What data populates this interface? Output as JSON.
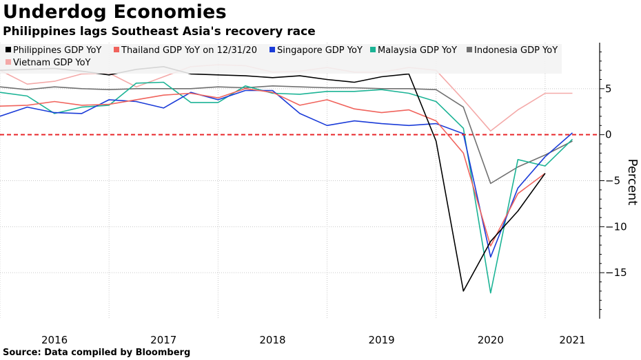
{
  "header": {
    "title": "Underdog Economies",
    "subtitle": "Philippines lags Southeast Asia's recovery race"
  },
  "footer": {
    "source": "Source: Data compiled by Bloomberg"
  },
  "chart_data": {
    "type": "line",
    "ylabel": "Percent",
    "ylim": [
      -20,
      10
    ],
    "yticks": [
      5,
      0,
      -5,
      -10,
      -15
    ],
    "x_ticks": [
      {
        "label": "2016",
        "x": 2016.5
      },
      {
        "label": "2017",
        "x": 2017.5
      },
      {
        "label": "2018",
        "x": 2018.5
      },
      {
        "label": "2019",
        "x": 2019.5
      },
      {
        "label": "2020",
        "x": 2020.5
      },
      {
        "label": "2021",
        "x": 2021.25
      }
    ],
    "x_gridlines": [
      2016,
      2017,
      2018,
      2019,
      2020,
      2021
    ],
    "xlim": [
      2016,
      2021.5
    ],
    "zero_line": {
      "value": 0,
      "color": "#e8262a",
      "style": "dashed"
    },
    "grid": true,
    "legend_position": "top-left",
    "x": [
      2016.0,
      2016.25,
      2016.5,
      2016.75,
      2017.0,
      2017.25,
      2017.5,
      2017.75,
      2018.0,
      2018.25,
      2018.5,
      2018.75,
      2019.0,
      2019.25,
      2019.5,
      2019.75,
      2020.0,
      2020.25,
      2020.5,
      2020.75,
      2021.0,
      2021.25
    ],
    "series": [
      {
        "name": "Philippines GDP YoY",
        "color": "#000000",
        "values": [
          7.0,
          7.1,
          7.2,
          6.9,
          6.5,
          7.1,
          7.4,
          6.6,
          6.5,
          6.4,
          6.2,
          6.4,
          6.0,
          5.7,
          6.3,
          6.6,
          -0.7,
          -17.0,
          -11.6,
          -8.3,
          -4.2,
          null
        ]
      },
      {
        "name": "Thailand GDP YoY on 12/31/20",
        "color": "#f0635c",
        "values": [
          3.1,
          3.2,
          3.6,
          3.2,
          3.3,
          3.8,
          4.3,
          4.5,
          4.0,
          5.0,
          4.6,
          3.2,
          3.8,
          2.8,
          2.4,
          2.7,
          1.5,
          -2.0,
          -12.1,
          -6.4,
          -4.2,
          null
        ]
      },
      {
        "name": "Singapore GDP YoY",
        "color": "#1a3bd8",
        "values": [
          2.0,
          3.0,
          2.4,
          2.3,
          3.8,
          3.6,
          2.9,
          4.6,
          3.8,
          4.8,
          4.8,
          2.3,
          1.0,
          1.5,
          1.2,
          1.0,
          1.2,
          0.1,
          -13.3,
          -5.8,
          -2.4,
          0.2
        ]
      },
      {
        "name": "Malaysia GDP YoY",
        "color": "#1bb395",
        "values": [
          4.6,
          4.2,
          2.3,
          3.0,
          3.2,
          5.6,
          5.7,
          3.5,
          3.5,
          5.3,
          4.5,
          4.4,
          4.7,
          4.7,
          4.9,
          4.5,
          3.6,
          0.7,
          -17.2,
          -2.7,
          -3.4,
          -0.5
        ]
      },
      {
        "name": "Indonesia GDP YoY",
        "color": "#707070",
        "values": [
          5.2,
          4.9,
          5.2,
          5.0,
          4.9,
          5.0,
          5.0,
          5.0,
          5.2,
          5.1,
          5.3,
          5.2,
          5.1,
          5.1,
          5.0,
          5.0,
          4.9,
          3.0,
          -5.3,
          -3.5,
          -2.2,
          -0.7
        ]
      },
      {
        "name": "Vietnam GDP YoY",
        "color": "#f4a9a8",
        "values": [
          7.0,
          5.5,
          5.8,
          6.6,
          6.7,
          5.2,
          6.3,
          7.4,
          7.6,
          7.5,
          6.8,
          6.9,
          7.3,
          6.8,
          6.8,
          7.3,
          7.0,
          3.8,
          0.4,
          2.7,
          4.5,
          4.5
        ]
      }
    ]
  }
}
